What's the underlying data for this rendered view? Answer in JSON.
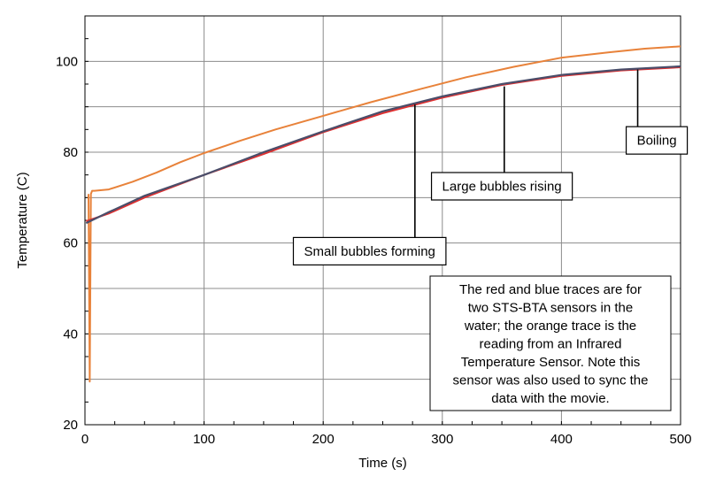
{
  "chart_data": {
    "type": "line",
    "xlabel": "Time (s)",
    "ylabel": "Temperature (C)",
    "xlim": [
      0,
      500
    ],
    "ylim": [
      20,
      110
    ],
    "xticks": [
      0,
      100,
      200,
      300,
      400,
      500
    ],
    "yticks": [
      20,
      40,
      60,
      80,
      100
    ],
    "grid": true,
    "series": [
      {
        "color": "#e8823a",
        "x": [
          3,
          4,
          5,
          6,
          8,
          20,
          40,
          60,
          80,
          100,
          130,
          160,
          200,
          240,
          280,
          320,
          360,
          400,
          440,
          470,
          500
        ],
        "y": [
          70.8,
          29.5,
          70.8,
          71.5,
          71.5,
          71.8,
          73.5,
          75.5,
          77.8,
          79.8,
          82.5,
          85.0,
          88.0,
          91.0,
          93.8,
          96.5,
          98.8,
          100.8,
          102.0,
          102.8,
          103.3
        ]
      },
      {
        "color": "#e03030",
        "x": [
          1,
          20,
          50,
          100,
          150,
          200,
          250,
          300,
          350,
          400,
          450,
          500
        ],
        "y": [
          64.8,
          66.5,
          70.0,
          75.0,
          79.6,
          84.4,
          88.6,
          92.0,
          94.8,
          96.8,
          98.0,
          98.7
        ]
      },
      {
        "color": "#4a4e6a",
        "x": [
          1,
          20,
          50,
          100,
          150,
          200,
          250,
          300,
          350,
          400,
          450,
          500
        ],
        "y": [
          64.4,
          66.8,
          70.4,
          75.0,
          80.0,
          84.6,
          89.0,
          92.3,
          95.0,
          97.0,
          98.2,
          98.9
        ]
      }
    ],
    "annotations": [
      {
        "name": "small-bubbles-label",
        "text": "Small bubbles forming",
        "x": 277,
        "y": 90.5,
        "box_x": 239,
        "box_y": 58.2
      },
      {
        "name": "large-bubbles-label",
        "text": "Large bubbles rising",
        "x": 352,
        "y": 94.5,
        "box_x": 350,
        "box_y": 72.5
      },
      {
        "name": "boiling-label",
        "text": "Boiling",
        "x": 464,
        "y": 98.2,
        "box_x": 480,
        "box_y": 82.6
      }
    ],
    "note": "The red and blue traces are for two STS-BTA sensors in the water; the orange trace is the reading from an Infrared Temperature Sensor. Note this sensor was also used to sync the data with the movie."
  }
}
